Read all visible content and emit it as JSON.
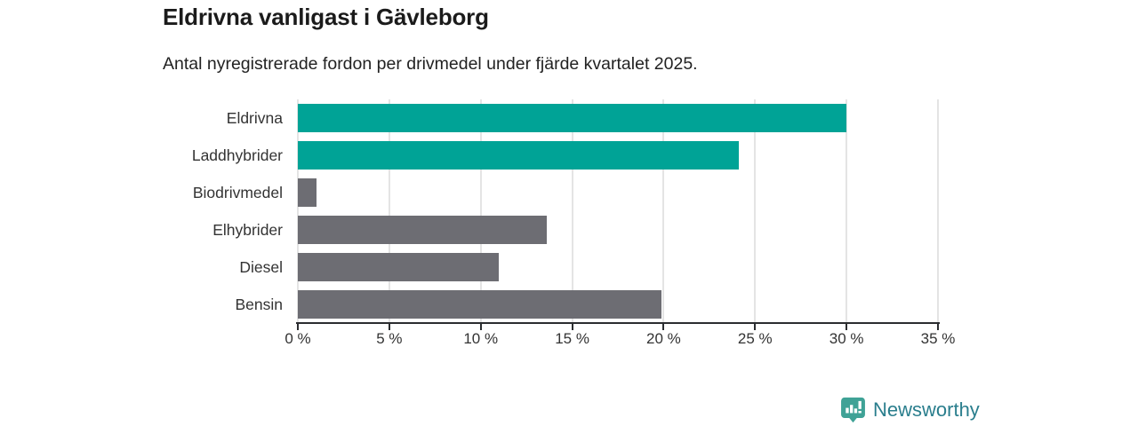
{
  "header": {
    "title": "Eldrivna vanligast i Gävleborg",
    "subtitle": "Antal nyregistrerade fordon per drivmedel under fjärde kvartalet 2025."
  },
  "chart_data": {
    "type": "bar",
    "orientation": "horizontal",
    "title": "Eldrivna vanligast i Gävleborg",
    "subtitle": "Antal nyregistrerade fordon per drivmedel under fjärde kvartalet 2025.",
    "categories": [
      "Eldrivna",
      "Laddhybrider",
      "Biodrivmedel",
      "Elhybrider",
      "Diesel",
      "Bensin"
    ],
    "values": [
      30.0,
      24.1,
      1.0,
      13.6,
      11.0,
      19.9
    ],
    "unit": "%",
    "bar_colors": [
      "#00a396",
      "#00a396",
      "#6d6d73",
      "#6d6d73",
      "#6d6d73",
      "#6d6d73"
    ],
    "highlight_color": "#00a396",
    "default_color": "#6d6d73",
    "xlim": [
      0,
      35
    ],
    "x_ticks": [
      0,
      5,
      10,
      15,
      20,
      25,
      30,
      35
    ],
    "x_tick_labels": [
      "0 %",
      "5 %",
      "10 %",
      "15 %",
      "20 %",
      "25 %",
      "30 %",
      "35 %"
    ],
    "grid": "vertical",
    "gridline_color": "#e4e4e4",
    "axis_color": "#2b2d30",
    "legend": "none"
  },
  "footer": {
    "brand": "Newsworthy",
    "brand_color": "#2a7e8d",
    "icon": "bar-chart-speech-bubble-icon",
    "icon_color": "#3fa296"
  }
}
